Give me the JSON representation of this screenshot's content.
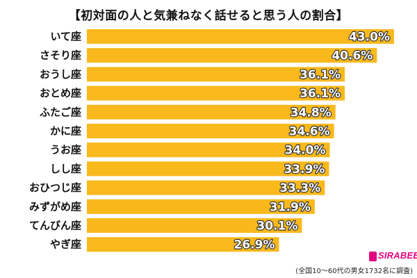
{
  "chart_data": {
    "type": "bar",
    "orientation": "horizontal",
    "title": "【初対面の人と気兼ねなく話せると思う人の割合】",
    "categories": [
      "いて座",
      "さそり座",
      "おうし座",
      "おとめ座",
      "ふたご座",
      "かに座",
      "うお座",
      "しし座",
      "おひつじ座",
      "みずがめ座",
      "てんびん座",
      "やぎ座"
    ],
    "values": [
      43.0,
      40.6,
      36.1,
      36.1,
      34.8,
      34.6,
      34.0,
      33.9,
      33.3,
      31.9,
      30.1,
      26.9
    ],
    "value_labels": [
      "43.0%",
      "40.6%",
      "36.1%",
      "36.1%",
      "34.8%",
      "34.6%",
      "34.0%",
      "33.9%",
      "33.3%",
      "31.9%",
      "30.1%",
      "26.9%"
    ],
    "unit": "%",
    "xlim": [
      0,
      43
    ],
    "grid": false,
    "legend": "none",
    "bar_color": "#f9b91d"
  },
  "source_note": "(全国10〜60代の男女1732名に調査)",
  "logo": {
    "text": "SIRABEE",
    "color": "#e3007f"
  }
}
